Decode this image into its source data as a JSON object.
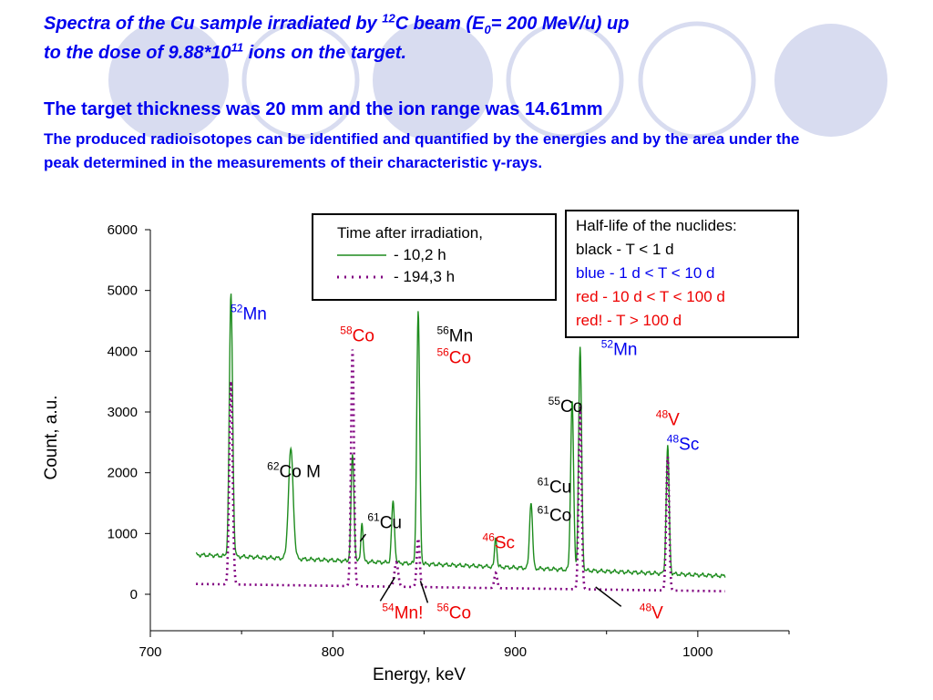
{
  "header": {
    "title_l1_pre": "Spectra of the Cu sample irradiated by ",
    "title_l1_sup": "12",
    "title_l1_mid": "C beam (E",
    "title_l1_sub": "0",
    "title_l1_post": "= 200 MeV/u) up",
    "title_l2_pre": "to the dose of 9.88*10",
    "title_l2_sup": "11",
    "title_l2_post": " ions on the target.",
    "subheading": "The target thickness was 20 mm and the ion range was 14.61mm",
    "description": "The produced radioisotopes can be identified and quantified by the energies and by the area under the peak determined in the measurements of their characteristic γ-rays."
  },
  "legend": {
    "title": "Time after irradiation,",
    "series1": "- 10,2 h",
    "series2": "- 194,3 h"
  },
  "halflife": {
    "title": "Half-life of the nuclides:",
    "black": "black - T < 1 d",
    "blue": "blue - 1 d < T < 10 d",
    "red": "red - 10 d < T < 100 d",
    "redbang": "red! - T > 100 d"
  },
  "colors": {
    "title": "#0000ee",
    "green": "#1e8c1e",
    "purple": "#800080",
    "blue": "#0000ee",
    "red": "#ee0000",
    "black": "#000000",
    "decor": "#d8dcf0"
  },
  "chart_data": {
    "type": "line",
    "xlabel": "Energy, keV",
    "ylabel": "Count, a.u.",
    "xlim": [
      700,
      1050
    ],
    "ylim": [
      -600,
      6000
    ],
    "xticks": [
      700,
      800,
      900,
      1000
    ],
    "yticks": [
      0,
      1000,
      2000,
      3000,
      4000,
      5000,
      6000
    ],
    "series": [
      {
        "name": "- 10,2 h",
        "color": "#1e8c1e",
        "baseline_start": 650,
        "baseline_end": 300,
        "x_range": [
          725,
          1015
        ],
        "peaks": [
          {
            "x": 744.2,
            "y": 4300,
            "w": 0.9
          },
          {
            "x": 777.0,
            "y": 1800,
            "w": 1.3
          },
          {
            "x": 810.8,
            "y": 1750,
            "w": 0.8
          },
          {
            "x": 816.0,
            "y": 650,
            "w": 0.6
          },
          {
            "x": 833.0,
            "y": 1000,
            "w": 0.8
          },
          {
            "x": 846.8,
            "y": 4150,
            "w": 0.8
          },
          {
            "x": 889.3,
            "y": 500,
            "w": 0.6
          },
          {
            "x": 908.6,
            "y": 1100,
            "w": 0.8
          },
          {
            "x": 931.1,
            "y": 2800,
            "w": 0.8
          },
          {
            "x": 935.5,
            "y": 3650,
            "w": 0.8
          },
          {
            "x": 983.5,
            "y": 2100,
            "w": 0.8
          }
        ]
      },
      {
        "name": "- 194,3 h",
        "color": "#800080",
        "baseline_start": 170,
        "baseline_end": 50,
        "x_range": [
          725,
          1015
        ],
        "peaks": [
          {
            "x": 744.2,
            "y": 3350,
            "w": 0.9
          },
          {
            "x": 810.8,
            "y": 3900,
            "w": 0.8
          },
          {
            "x": 834.8,
            "y": 400,
            "w": 1.0
          },
          {
            "x": 846.8,
            "y": 800,
            "w": 0.8
          },
          {
            "x": 889.3,
            "y": 250,
            "w": 0.8
          },
          {
            "x": 935.5,
            "y": 3000,
            "w": 0.8
          },
          {
            "x": 983.5,
            "y": 2200,
            "w": 0.8
          }
        ]
      }
    ],
    "annotations": [
      {
        "id": "mn52a",
        "mass": "52",
        "el": "Mn",
        "color": "#0000ee",
        "x": 744,
        "y": 4520
      },
      {
        "id": "co62",
        "mass": "62",
        "el": "Co M",
        "color": "#000000",
        "x": 764,
        "y": 1930
      },
      {
        "id": "co58",
        "mass": "58",
        "el": "Co",
        "color": "#ee0000",
        "x": 804,
        "y": 4160
      },
      {
        "id": "cu61a",
        "mass": "61",
        "el": "Cu",
        "color": "#000000",
        "x": 819,
        "y": 1090
      },
      {
        "id": "mn56",
        "mass": "56",
        "el": "Mn",
        "color": "#000000",
        "x": 857,
        "y": 4160
      },
      {
        "id": "co56a",
        "mass": "56",
        "el": "Co",
        "color": "#ee0000",
        "x": 857,
        "y": 3800
      },
      {
        "id": "sc46",
        "mass": "46",
        "el": "Sc",
        "color": "#ee0000",
        "x": 882,
        "y": 760
      },
      {
        "id": "co55",
        "mass": "55",
        "el": "Co",
        "color": "#000000",
        "x": 918,
        "y": 3000
      },
      {
        "id": "cu61b",
        "mass": "61",
        "el": "Cu",
        "color": "#000000",
        "x": 912,
        "y": 1670
      },
      {
        "id": "co61",
        "mass": "61",
        "el": "Co",
        "color": "#000000",
        "x": 912,
        "y": 1210
      },
      {
        "id": "mn52b",
        "mass": "52",
        "el": "Mn",
        "color": "#0000ee",
        "x": 947,
        "y": 3940
      },
      {
        "id": "v48a",
        "mass": "48",
        "el": "V",
        "color": "#ee0000",
        "x": 977,
        "y": 2780
      },
      {
        "id": "sc48",
        "mass": "48",
        "el": "Sc",
        "color": "#0000ee",
        "x": 983,
        "y": 2380
      },
      {
        "id": "mn54",
        "mass": "54",
        "el": "Mn!",
        "color": "#ee0000",
        "x": 827,
        "y": -400
      },
      {
        "id": "co56b",
        "mass": "56",
        "el": "Co",
        "color": "#ee0000",
        "x": 857,
        "y": -400
      },
      {
        "id": "v48b",
        "mass": "48",
        "el": "V",
        "color": "#ee0000",
        "x": 968,
        "y": -400
      }
    ],
    "pointers": [
      {
        "from": [
          818,
          990
        ],
        "to": [
          815,
          870
        ]
      },
      {
        "from": [
          834,
          280
        ],
        "to": [
          826,
          -110
        ]
      },
      {
        "from": [
          848,
          220
        ],
        "to": [
          852,
          -140
        ]
      },
      {
        "from": [
          944,
          120
        ],
        "to": [
          958,
          -200
        ]
      }
    ]
  }
}
